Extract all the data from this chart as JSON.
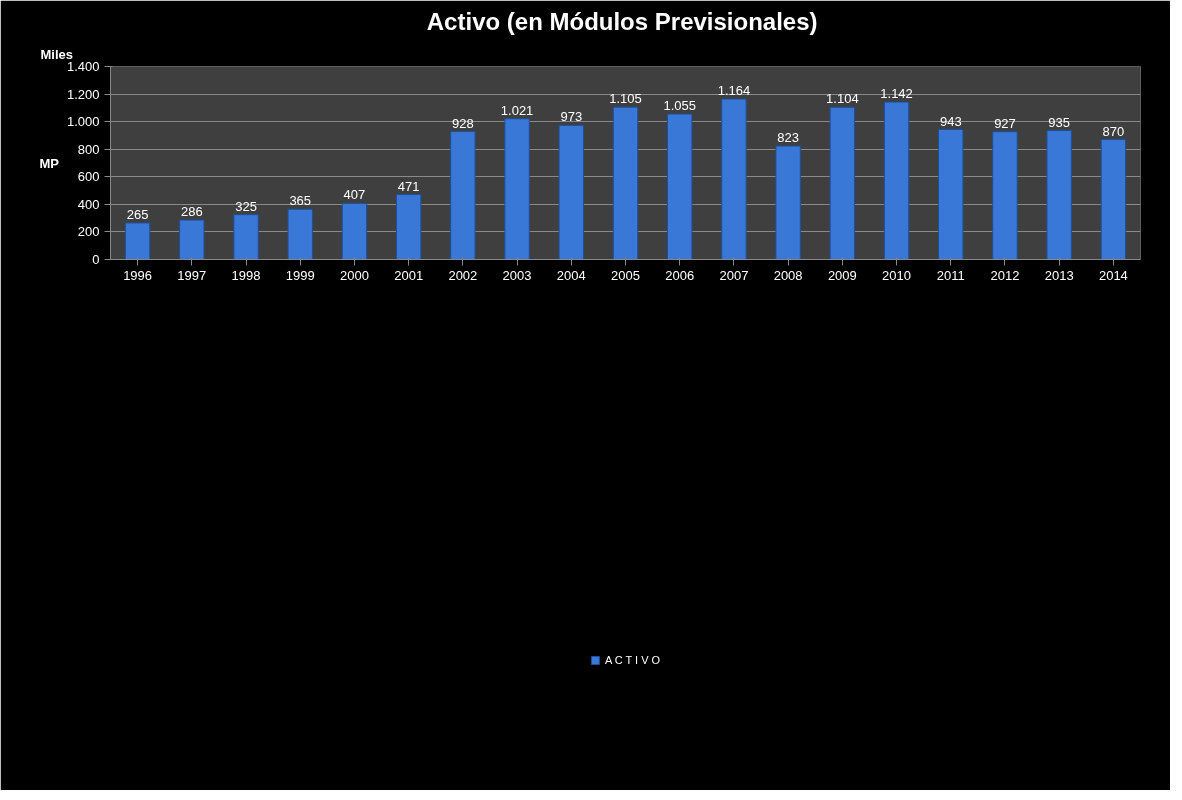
{
  "chart_data": {
    "type": "bar",
    "title": "Activo (en  Módulos Previsionales)",
    "ylabel": "MP",
    "annotations": [
      "Miles"
    ],
    "categories": [
      "1996",
      "1997",
      "1998",
      "1999",
      "2000",
      "2001",
      "2002",
      "2003",
      "2004",
      "2005",
      "2006",
      "2007",
      "2008",
      "2009",
      "2010",
      "2011",
      "2012",
      "2013",
      "2014"
    ],
    "series": [
      {
        "name": "A C T I V O",
        "color": "#3a78d8",
        "values": [
          265,
          286,
          325,
          365,
          407,
          471,
          928,
          1021,
          973,
          1105,
          1055,
          1164,
          823,
          1104,
          1142,
          943,
          927,
          935,
          870
        ],
        "value_labels": [
          "265",
          "286",
          "325",
          "365",
          "407",
          "471",
          "928",
          "1.021",
          "973",
          "1.105",
          "1.055",
          "1.164",
          "823",
          "1.104",
          "1.142",
          "943",
          "927",
          "935",
          "870"
        ]
      }
    ],
    "ylim": [
      0,
      1400
    ],
    "yticks": [
      0,
      200,
      400,
      600,
      800,
      {
        "value": 1000,
        "label": "1.000"
      },
      {
        "value": 1200,
        "label": "1.200"
      },
      {
        "value": 1400,
        "label": "1.400"
      }
    ],
    "grid": "y",
    "legend": "bottom"
  }
}
